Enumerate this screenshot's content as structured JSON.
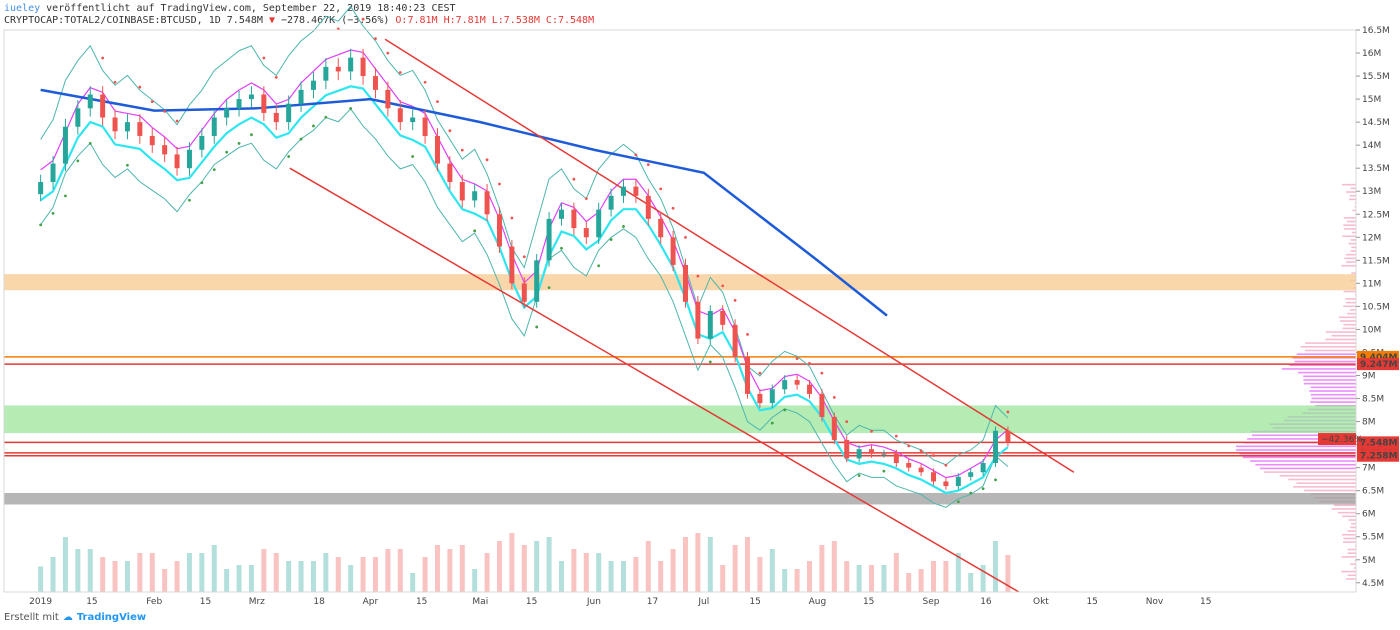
{
  "header": {
    "user": "iueley",
    "published": "veröffentlicht auf TradingView.com, September 22, 2019 18:40:23 CEST",
    "symbol": "CRYPTOCAP:TOTAL2/COINBASE:BTCUSD, 1D",
    "last": "7.548M",
    "change_arrow": "▼",
    "change": "−278.467K (−3.56%)",
    "ohlc": "O:7.81M H:7.81M L:7.538M C:7.548M"
  },
  "footer": {
    "made_with": "Erstellt mit",
    "brand": "TradingView"
  },
  "chart_data": {
    "type": "candlestick",
    "y_axis": {
      "unit": "M",
      "range": [
        4.3,
        16.5
      ],
      "ticks": [
        4.5,
        5,
        5.5,
        6,
        6.5,
        7,
        7.5,
        8,
        8.5,
        9,
        9.5,
        10,
        10.5,
        11,
        11.5,
        12,
        12.5,
        13,
        13.5,
        14,
        14.5,
        15,
        15.5,
        16,
        16.5
      ],
      "tick_labels": [
        "4.5M",
        "5M",
        "5.5M",
        "6M",
        "6.5M",
        "7M",
        "7.5M",
        "8M",
        "8.5M",
        "9M",
        "9.5M",
        "10M",
        "10.5M",
        "11M",
        "11.5M",
        "12M",
        "12.5M",
        "13M",
        "13.5M",
        "14M",
        "14.5M",
        "15M",
        "15.5M",
        "16M",
        "16.5M"
      ]
    },
    "x_axis": {
      "labels": [
        "2019",
        "15",
        "Feb",
        "15",
        "Mrz",
        "18",
        "Apr",
        "15",
        "Mai",
        "15",
        "Jun",
        "17",
        "Jul",
        "15",
        "Aug",
        "15",
        "Sep",
        "16",
        "Okt",
        "15",
        "Nov",
        "15"
      ]
    },
    "candles_close": [
      13.2,
      13.6,
      14.4,
      14.8,
      15.1,
      14.6,
      14.3,
      14.5,
      14.2,
      14.0,
      13.8,
      13.5,
      13.9,
      14.2,
      14.6,
      14.8,
      15.0,
      15.1,
      14.7,
      14.5,
      14.9,
      15.2,
      15.4,
      15.7,
      15.6,
      15.9,
      15.5,
      15.2,
      14.8,
      14.5,
      14.6,
      14.2,
      13.6,
      13.2,
      12.8,
      13.0,
      12.5,
      11.8,
      11.0,
      10.6,
      11.5,
      12.4,
      12.6,
      12.2,
      12.0,
      12.6,
      12.9,
      13.1,
      12.9,
      12.4,
      12.0,
      11.4,
      10.6,
      9.8,
      10.4,
      10.1,
      9.4,
      8.6,
      8.4,
      8.7,
      8.9,
      8.8,
      8.6,
      8.1,
      7.6,
      7.2,
      7.4,
      7.3,
      7.3,
      7.1,
      7.0,
      6.9,
      6.7,
      6.6,
      6.8,
      6.9,
      7.1,
      7.8,
      7.55
    ],
    "moving_average_200d": [
      {
        "date": "2019-01-01",
        "value": 15.2
      },
      {
        "date": "2019-02-01",
        "value": 14.75
      },
      {
        "date": "2019-03-01",
        "value": 14.8
      },
      {
        "date": "2019-04-01",
        "value": 15.0
      },
      {
        "date": "2019-05-01",
        "value": 14.5
      },
      {
        "date": "2019-06-01",
        "value": 13.9
      },
      {
        "date": "2019-07-01",
        "value": 13.4
      },
      {
        "date": "2019-08-01",
        "value": 11.5
      },
      {
        "date": "2019-08-20",
        "value": 10.3
      }
    ],
    "channel": {
      "upper": [
        {
          "date": "2019-04-05",
          "value": 16.3
        },
        {
          "date": "2019-10-10",
          "value": 6.9
        }
      ],
      "lower": [
        {
          "date": "2019-03-10",
          "value": 13.5
        },
        {
          "date": "2019-09-25",
          "value": 4.3
        }
      ]
    },
    "zones": [
      {
        "from": 10.85,
        "to": 11.2,
        "color": "#f8c98f"
      },
      {
        "from": 7.75,
        "to": 8.35,
        "color": "#9be59b"
      },
      {
        "from": 6.2,
        "to": 6.45,
        "color": "#9e9e9e"
      }
    ],
    "levels": [
      {
        "value": 9.404,
        "label": "9.404M",
        "color": "#f57c00"
      },
      {
        "value": 9.247,
        "label": "9.247M",
        "color": "#e53935"
      },
      {
        "value": 7.548,
        "label": "7.548M",
        "color": "#e53935"
      },
      {
        "value": 7.321,
        "label": "7.321M",
        "color": "#e53935"
      },
      {
        "value": 7.258,
        "label": "7.258M",
        "color": "#e53935"
      }
    ],
    "change_badge": "−42.36%",
    "colors": {
      "up": "#26a69a",
      "down": "#ef5350",
      "ma": "#1e5bd8",
      "channel": "#e53935",
      "bb": "#4db6ac",
      "psar": "#43a047",
      "supertrend": "#2ee6f0",
      "ma_magenta": "#e040fb"
    }
  }
}
